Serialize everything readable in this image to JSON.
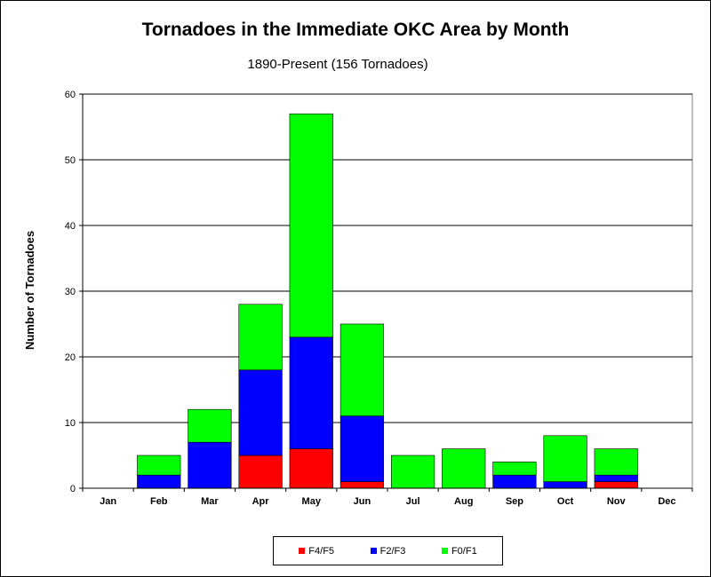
{
  "chart_data": {
    "type": "bar",
    "stacked": true,
    "title": "Tornadoes in the Immediate OKC Area by Month",
    "subtitle": "1890-Present (156 Tornadoes)",
    "xlabel": "",
    "ylabel": "Number of Tornadoes",
    "ylim": [
      0,
      60
    ],
    "yticks": [
      "0",
      "10",
      "20",
      "30",
      "40",
      "50",
      "60"
    ],
    "grid": true,
    "legend_position": "bottom",
    "categories": [
      "Jan",
      "Feb",
      "Mar",
      "Apr",
      "May",
      "Jun",
      "Jul",
      "Aug",
      "Sep",
      "Oct",
      "Nov",
      "Dec"
    ],
    "series": [
      {
        "name": "F4/F5",
        "color": "#ff0000",
        "values": [
          0,
          0,
          0,
          5,
          6,
          1,
          0,
          0,
          0,
          0,
          1,
          0
        ]
      },
      {
        "name": "F2/F3",
        "color": "#0000ff",
        "values": [
          0,
          2,
          7,
          13,
          17,
          10,
          0,
          0,
          2,
          1,
          1,
          0
        ]
      },
      {
        "name": "F0/F1",
        "color": "#00ff00",
        "values": [
          0,
          3,
          5,
          10,
          34,
          14,
          5,
          6,
          2,
          7,
          4,
          0
        ]
      }
    ]
  }
}
